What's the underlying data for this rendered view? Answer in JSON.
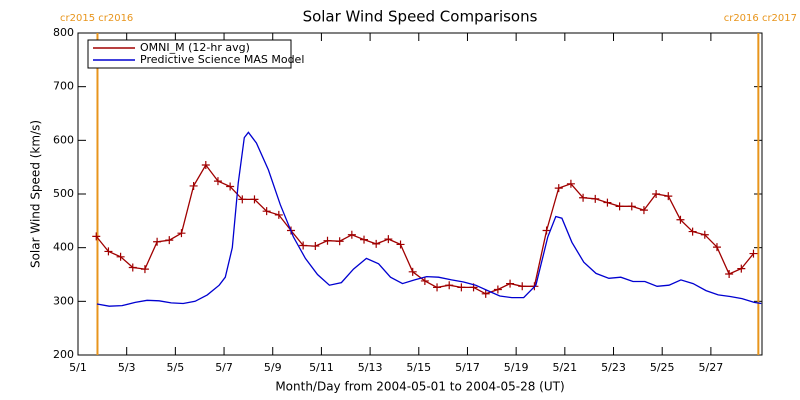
{
  "chart_data": {
    "type": "line",
    "title": "Solar Wind Speed Comparisons",
    "x_label": "Month/Day from 2004-05-01 to 2004-05-28 (UT)",
    "y_label": "Solar Wind Speed (km/s)",
    "xlim": [
      1,
      29.1
    ],
    "xticks": [
      {
        "value": 1,
        "label": "5/1"
      },
      {
        "value": 3,
        "label": "5/3"
      },
      {
        "value": 5,
        "label": "5/5"
      },
      {
        "value": 7,
        "label": "5/7"
      },
      {
        "value": 9,
        "label": "5/9"
      },
      {
        "value": 11,
        "label": "5/11"
      },
      {
        "value": 13,
        "label": "5/13"
      },
      {
        "value": 15,
        "label": "5/15"
      },
      {
        "value": 17,
        "label": "5/17"
      },
      {
        "value": 19,
        "label": "5/19"
      },
      {
        "value": 21,
        "label": "5/21"
      },
      {
        "value": 23,
        "label": "5/23"
      },
      {
        "value": 25,
        "label": "5/25"
      },
      {
        "value": 27,
        "label": "5/27"
      }
    ],
    "ylim": [
      200,
      800
    ],
    "yticks": [
      200,
      300,
      400,
      500,
      600,
      700,
      800
    ],
    "legend": "top-left",
    "annotation_color": "#e8951c",
    "annotations": [
      {
        "x": 1.8,
        "label": "cr2015 cr2016"
      },
      {
        "x": 28.95,
        "label": "cr2016 cr2017"
      }
    ],
    "series": [
      {
        "name": "OMNI_M (12-hr avg)",
        "color": "#a00000",
        "markers": true,
        "x": [
          1.75,
          2.25,
          2.75,
          3.25,
          3.75,
          4.25,
          4.75,
          5.25,
          5.75,
          6.25,
          6.75,
          7.25,
          7.75,
          8.25,
          8.75,
          9.25,
          9.75,
          10.25,
          10.75,
          11.25,
          11.75,
          12.25,
          12.75,
          13.25,
          13.75,
          14.25,
          14.75,
          15.25,
          15.75,
          16.25,
          16.75,
          17.25,
          17.75,
          18.25,
          18.75,
          19.25,
          19.75,
          20.25,
          20.75,
          21.25,
          21.75,
          22.25,
          22.75,
          23.25,
          23.75,
          24.25,
          24.75,
          25.25,
          25.75,
          26.25,
          26.75,
          27.25,
          27.75,
          28.25,
          28.75
        ],
        "values": [
          421,
          393,
          383,
          363,
          360,
          411,
          414,
          427,
          515,
          554,
          524,
          514,
          490,
          490,
          468,
          461,
          432,
          404,
          403,
          413,
          412,
          424,
          415,
          407,
          416,
          406,
          355,
          338,
          326,
          330,
          326,
          326,
          314,
          322,
          333,
          328,
          328,
          432,
          511,
          519,
          493,
          491,
          484,
          477,
          477,
          470,
          500,
          496,
          452,
          430,
          424,
          401,
          351,
          361,
          389
        ]
      },
      {
        "name": "Predictive Science MAS Model",
        "color": "#0000d0",
        "markers": false,
        "x": [
          1.78,
          2.28,
          2.81,
          3.35,
          3.84,
          4.33,
          4.83,
          5.32,
          5.81,
          6.31,
          6.8,
          7.05,
          7.34,
          7.58,
          7.83,
          8.0,
          8.33,
          8.82,
          9.31,
          9.85,
          10.34,
          10.84,
          11.33,
          11.82,
          12.32,
          12.85,
          13.35,
          13.84,
          14.33,
          14.83,
          15.32,
          15.81,
          16.35,
          16.84,
          17.34,
          17.83,
          18.33,
          18.82,
          19.31,
          19.81,
          20.3,
          20.63,
          20.88,
          21.29,
          21.78,
          22.28,
          22.81,
          23.3,
          23.8,
          24.29,
          24.79,
          25.28,
          25.77,
          26.27,
          26.8,
          27.3,
          27.79,
          28.28,
          28.78,
          29.07
        ],
        "values": [
          295,
          291,
          292,
          298,
          302,
          301,
          297,
          296,
          300,
          312,
          330,
          345,
          400,
          520,
          605,
          615,
          595,
          545,
          480,
          420,
          380,
          350,
          330,
          335,
          360,
          380,
          370,
          345,
          333,
          340,
          346,
          345,
          340,
          336,
          330,
          320,
          310,
          307,
          307,
          330,
          420,
          458,
          455,
          410,
          373,
          352,
          343,
          345,
          337,
          337,
          328,
          330,
          340,
          333,
          320,
          312,
          309,
          305,
          298,
          296
        ]
      }
    ]
  }
}
